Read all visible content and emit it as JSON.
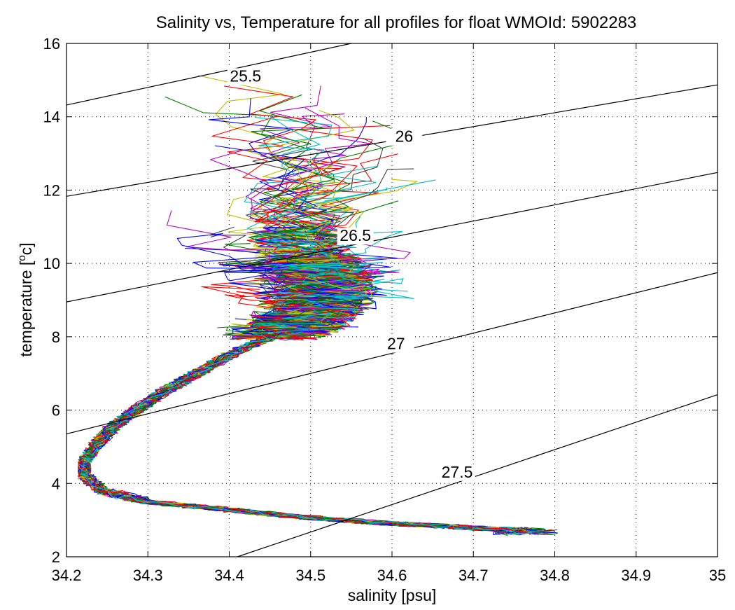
{
  "chart_data": {
    "type": "line",
    "title": "Salinity vs, Temperature for all profiles for float WMOId: 5902283",
    "xlabel": "salinity [psu]",
    "ylabel_main": "temperature [",
    "ylabel_sup": "o",
    "ylabel_end": "c]",
    "xlim": [
      34.2,
      35.0
    ],
    "ylim": [
      2,
      16
    ],
    "x_ticks": [
      "34.2",
      "34.3",
      "34.4",
      "34.5",
      "34.6",
      "34.7",
      "34.8",
      "34.9",
      "35"
    ],
    "y_ticks": [
      "2",
      "4",
      "6",
      "8",
      "10",
      "12",
      "14",
      "16"
    ],
    "grid": true,
    "isopycnals": [
      {
        "label": "25.5",
        "x": [
          34.2,
          34.55
        ],
        "y": [
          14.32,
          16.0
        ],
        "label_at": [
          34.42,
          15.0
        ]
      },
      {
        "label": "26",
        "x": [
          34.2,
          35.0
        ],
        "y": [
          11.83,
          14.87
        ],
        "label_at": [
          34.615,
          13.35
        ]
      },
      {
        "label": "26.5",
        "x": [
          34.2,
          35.0
        ],
        "y": [
          8.95,
          12.48
        ],
        "label_at": [
          34.555,
          10.65
        ]
      },
      {
        "label": "27",
        "x": [
          34.2,
          35.0
        ],
        "y": [
          5.35,
          9.75
        ],
        "label_at": [
          34.605,
          7.7
        ]
      },
      {
        "label": "27.5",
        "x": [
          34.41,
          35.0
        ],
        "y": [
          2.0,
          6.42
        ],
        "label_at": [
          34.68,
          4.2
        ]
      }
    ],
    "profile_colors": [
      "#0000ff",
      "#008000",
      "#ff0000",
      "#00bfbf",
      "#bf00bf",
      "#bfbf00",
      "#404040"
    ],
    "profile_count": 60
  }
}
